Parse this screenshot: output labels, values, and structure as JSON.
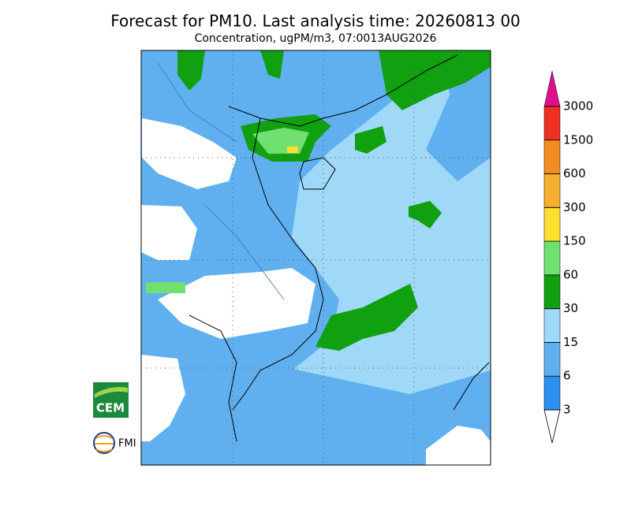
{
  "title": "Forecast for PM10. Last analysis time: 20260813 00",
  "subtitle": "Concentration, ugPM/m3, 07:0013AUG2026",
  "logos": [
    "CEM",
    "FMI"
  ],
  "colorbar": {
    "levels": [
      3,
      6,
      15,
      30,
      60,
      150,
      300,
      600,
      1500,
      3000
    ],
    "colors": [
      "#2d8ff0",
      "#60b0f0",
      "#a0d8f8",
      "#10a010",
      "#70e070",
      "#ffe030",
      "#f5b030",
      "#f08c20",
      "#f03020"
    ],
    "over_color": "#e0108c",
    "under_color": "#ffffff"
  }
}
